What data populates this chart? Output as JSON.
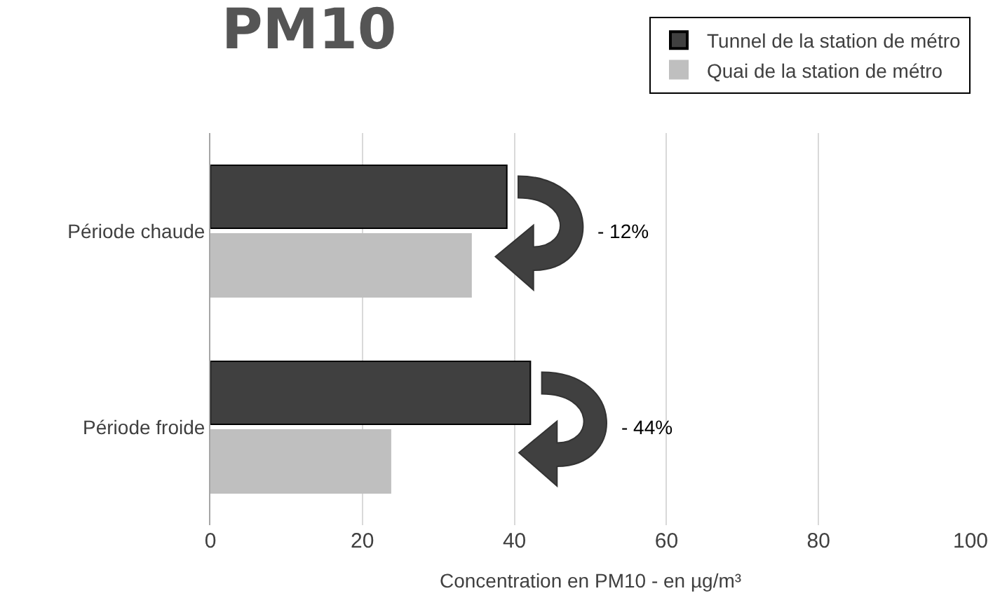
{
  "chart_data": {
    "type": "bar",
    "orientation": "horizontal",
    "title": "PM10",
    "xlabel": "Concentration en PM10 - en µg/m³",
    "categories": [
      "Période chaude",
      "Période froide"
    ],
    "series": [
      {
        "name": "Tunnel de la station de métro",
        "color": "#404040",
        "values": [
          39.0,
          42.1
        ]
      },
      {
        "name": "Quai de la station de métro",
        "color": "#bfbfbf",
        "values": [
          34.3,
          23.7
        ]
      }
    ],
    "xlim": [
      0,
      100
    ],
    "xticks": [
      0,
      20,
      40,
      60,
      80,
      100
    ],
    "grid": "x",
    "legend": "top right",
    "annotations": [
      "- 12%",
      "- 44%"
    ]
  }
}
